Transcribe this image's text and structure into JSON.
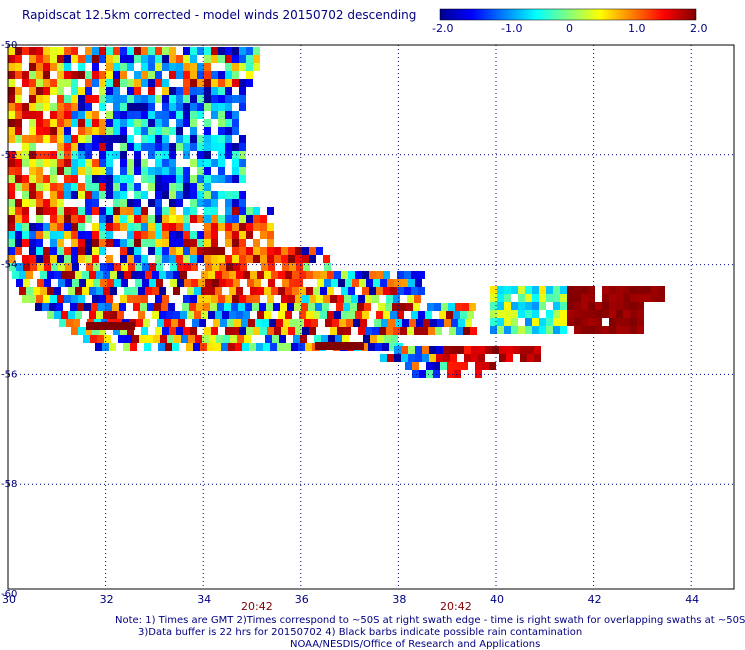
{
  "title": "Rapidscat 12.5km corrected - model winds 20150702 descending",
  "colorbar": {
    "labels": [
      "-2.0",
      "-1.0",
      "0",
      "1.0",
      "2.0"
    ],
    "stops": [
      "#00008f",
      "#0000ff",
      "#00ffff",
      "#ffff00",
      "#ff0000",
      "#800000"
    ]
  },
  "axes": {
    "x_ticks": [
      "30",
      "32",
      "34",
      "36",
      "38",
      "40",
      "42",
      "44"
    ],
    "y_ticks": [
      "-50",
      "-52",
      "-54",
      "-56",
      "-58",
      "-60"
    ],
    "grid": true
  },
  "pass_times": [
    "20:42",
    "20:42"
  ],
  "notes": [
    "Note: 1) Times are GMT 2)Times correspond to ~50S at right swath edge - time is right swath for overlapping swaths at ~50S",
    "3)Data buffer is 22 hrs for 20150702 4) Black barbs indicate possible rain contamination",
    "NOAA/NESDIS/Office of Research and Applications"
  ],
  "colors": {
    "text": "#000080",
    "time": "#800000",
    "grid": "#000080",
    "frame": "#000000"
  }
}
